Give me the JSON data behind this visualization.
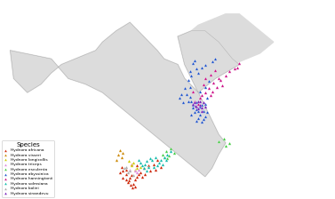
{
  "title": "",
  "legend_title": "Species",
  "species": [
    {
      "name": "Hydnora africana",
      "color": "#cc2200",
      "marker": "^",
      "points": [
        [
          18.5,
          -29.5
        ],
        [
          17.8,
          -31.2
        ],
        [
          18.2,
          -33.0
        ],
        [
          19.0,
          -32.5
        ],
        [
          20.0,
          -30.0
        ],
        [
          21.0,
          -28.5
        ],
        [
          19.5,
          -31.0
        ],
        [
          18.0,
          -30.5
        ],
        [
          22.0,
          -27.0
        ],
        [
          23.5,
          -26.0
        ],
        [
          25.0,
          -25.5
        ],
        [
          26.0,
          -24.0
        ],
        [
          17.5,
          -32.0
        ],
        [
          16.8,
          -29.0
        ],
        [
          15.5,
          -26.5
        ],
        [
          16.0,
          -28.0
        ],
        [
          17.0,
          -27.5
        ],
        [
          20.5,
          -29.0
        ],
        [
          18.8,
          -34.0
        ],
        [
          19.5,
          -33.5
        ],
        [
          17.0,
          -31.0
        ],
        [
          21.5,
          -30.0
        ],
        [
          22.5,
          -29.0
        ],
        [
          24.0,
          -28.0
        ],
        [
          25.5,
          -27.5
        ],
        [
          27.0,
          -26.5
        ],
        [
          16.0,
          -30.5
        ],
        [
          15.0,
          -28.5
        ],
        [
          18.5,
          -25.5
        ],
        [
          20.0,
          -26.0
        ]
      ]
    },
    {
      "name": "Hydnora visseri",
      "color": "#cc8800",
      "marker": "^",
      "points": [
        [
          14.5,
          -22.0
        ],
        [
          15.0,
          -20.5
        ],
        [
          16.0,
          -21.5
        ],
        [
          14.0,
          -24.0
        ],
        [
          15.5,
          -23.0
        ]
      ]
    },
    {
      "name": "Hydnora longicollis",
      "color": "#cccc00",
      "marker": "^",
      "points": [
        [
          18.5,
          -26.0
        ],
        [
          19.0,
          -25.0
        ],
        [
          17.8,
          -24.5
        ],
        [
          21.0,
          -26.5
        ],
        [
          20.0,
          -27.0
        ],
        [
          19.5,
          -27.5
        ]
      ]
    },
    {
      "name": "Hydnora triceps",
      "color": "#dd88dd",
      "marker": "^",
      "points": [
        [
          19.5,
          -28.0
        ],
        [
          20.5,
          -27.5
        ],
        [
          18.0,
          -27.5
        ],
        [
          20.0,
          -28.5
        ]
      ]
    },
    {
      "name": "Hydnora esculenta",
      "color": "#44cc44",
      "marker": "^",
      "points": [
        [
          29.0,
          -23.5
        ],
        [
          28.5,
          -21.0
        ],
        [
          30.0,
          -20.0
        ],
        [
          31.0,
          -21.5
        ],
        [
          29.5,
          -22.5
        ],
        [
          27.5,
          -22.0
        ],
        [
          28.0,
          -23.0
        ],
        [
          46.0,
          -19.0
        ],
        [
          47.0,
          -18.0
        ],
        [
          45.5,
          -16.5
        ],
        [
          44.0,
          -17.5
        ]
      ]
    },
    {
      "name": "Hydnora abyssinica",
      "color": "#2255cc",
      "marker": "^",
      "points": [
        [
          38.5,
          -5.0
        ],
        [
          37.5,
          -3.5
        ],
        [
          39.0,
          -4.5
        ],
        [
          40.5,
          -2.0
        ],
        [
          38.0,
          -6.5
        ],
        [
          36.5,
          -5.5
        ],
        [
          37.0,
          -7.0
        ],
        [
          38.5,
          -8.0
        ],
        [
          39.5,
          -6.5
        ],
        [
          40.0,
          -4.0
        ],
        [
          36.0,
          -3.0
        ],
        [
          35.5,
          -1.5
        ],
        [
          34.5,
          -0.5
        ],
        [
          36.0,
          -8.0
        ],
        [
          37.5,
          -10.0
        ],
        [
          39.0,
          -10.5
        ],
        [
          40.0,
          -8.5
        ],
        [
          35.0,
          4.5
        ],
        [
          36.0,
          6.0
        ],
        [
          37.5,
          8.5
        ],
        [
          38.0,
          7.0
        ],
        [
          39.0,
          9.0
        ],
        [
          40.0,
          10.0
        ],
        [
          42.0,
          11.0
        ],
        [
          43.0,
          12.0
        ],
        [
          41.0,
          4.0
        ],
        [
          40.0,
          2.0
        ],
        [
          38.5,
          0.5
        ],
        [
          35.5,
          2.0
        ],
        [
          36.5,
          10.5
        ],
        [
          37.0,
          11.5
        ],
        [
          35.5,
          7.5
        ],
        [
          34.0,
          1.5
        ],
        [
          33.0,
          -0.5
        ],
        [
          32.5,
          -2.0
        ],
        [
          33.5,
          -3.5
        ],
        [
          35.0,
          -3.0
        ],
        [
          36.5,
          -4.5
        ],
        [
          37.5,
          -6.0
        ],
        [
          38.0,
          -9.0
        ],
        [
          39.5,
          -9.5
        ],
        [
          40.5,
          -7.0
        ]
      ]
    },
    {
      "name": "Hydnora hanningtonii",
      "color": "#cc1188",
      "marker": "^",
      "points": [
        [
          39.5,
          3.0
        ],
        [
          40.0,
          5.0
        ],
        [
          41.5,
          6.5
        ],
        [
          43.0,
          8.0
        ],
        [
          50.0,
          10.5
        ],
        [
          45.0,
          2.5
        ],
        [
          37.0,
          -3.0
        ],
        [
          38.0,
          -4.0
        ],
        [
          38.5,
          -2.0
        ],
        [
          39.0,
          -1.0
        ],
        [
          36.5,
          0.5
        ],
        [
          40.0,
          0.0
        ],
        [
          41.0,
          1.5
        ],
        [
          42.5,
          3.5
        ],
        [
          44.0,
          5.0
        ],
        [
          49.5,
          9.0
        ],
        [
          48.5,
          8.5
        ],
        [
          47.0,
          7.5
        ],
        [
          46.0,
          6.0
        ],
        [
          44.5,
          4.5
        ],
        [
          43.5,
          2.0
        ],
        [
          42.0,
          0.5
        ],
        [
          41.5,
          -1.0
        ]
      ]
    },
    {
      "name": "Hydnora solmsiana",
      "color": "#11bbaa",
      "marker": "^",
      "points": [
        [
          22.5,
          -25.5
        ],
        [
          23.0,
          -24.5
        ],
        [
          24.0,
          -23.5
        ],
        [
          21.5,
          -26.0
        ],
        [
          23.5,
          -26.5
        ],
        [
          22.0,
          -27.0
        ],
        [
          24.5,
          -24.0
        ],
        [
          25.5,
          -23.0
        ],
        [
          23.0,
          -28.0
        ],
        [
          25.0,
          -26.5
        ],
        [
          26.5,
          -25.0
        ],
        [
          27.0,
          -24.0
        ],
        [
          28.0,
          -23.0
        ],
        [
          29.0,
          -22.0
        ],
        [
          30.0,
          -21.0
        ],
        [
          21.0,
          -25.0
        ],
        [
          20.5,
          -24.0
        ],
        [
          26.0,
          -26.0
        ],
        [
          27.5,
          -25.5
        ],
        [
          28.5,
          -24.0
        ]
      ]
    },
    {
      "name": "Hydnora bolini",
      "color": "#aaaaaa",
      "marker": "^",
      "points": [
        [
          19.0,
          -29.5
        ],
        [
          17.5,
          -28.5
        ],
        [
          16.5,
          -27.0
        ],
        [
          18.0,
          -28.0
        ],
        [
          17.0,
          -26.5
        ]
      ]
    },
    {
      "name": "Hydnora sinandevu",
      "color": "#7722bb",
      "marker": "^",
      "points": [
        [
          38.5,
          -4.5
        ],
        [
          39.0,
          -5.5
        ],
        [
          37.5,
          -5.0
        ],
        [
          36.5,
          -4.0
        ],
        [
          37.0,
          -3.5
        ],
        [
          38.0,
          -3.0
        ],
        [
          39.5,
          -3.5
        ],
        [
          40.0,
          -5.0
        ],
        [
          39.0,
          -6.5
        ],
        [
          38.0,
          -5.8
        ],
        [
          37.2,
          -4.8
        ],
        [
          38.5,
          -3.0
        ]
      ]
    }
  ],
  "map_extent_lon": [
    -20,
    78
  ],
  "map_extent_lat": [
    -38,
    33
  ],
  "land_color": "#dcdcdc",
  "ocean_color": "#b8cfe0",
  "border_color": "#ffffff",
  "country_edge_color": "#cccccc",
  "bg_color": "#b8cfe0"
}
